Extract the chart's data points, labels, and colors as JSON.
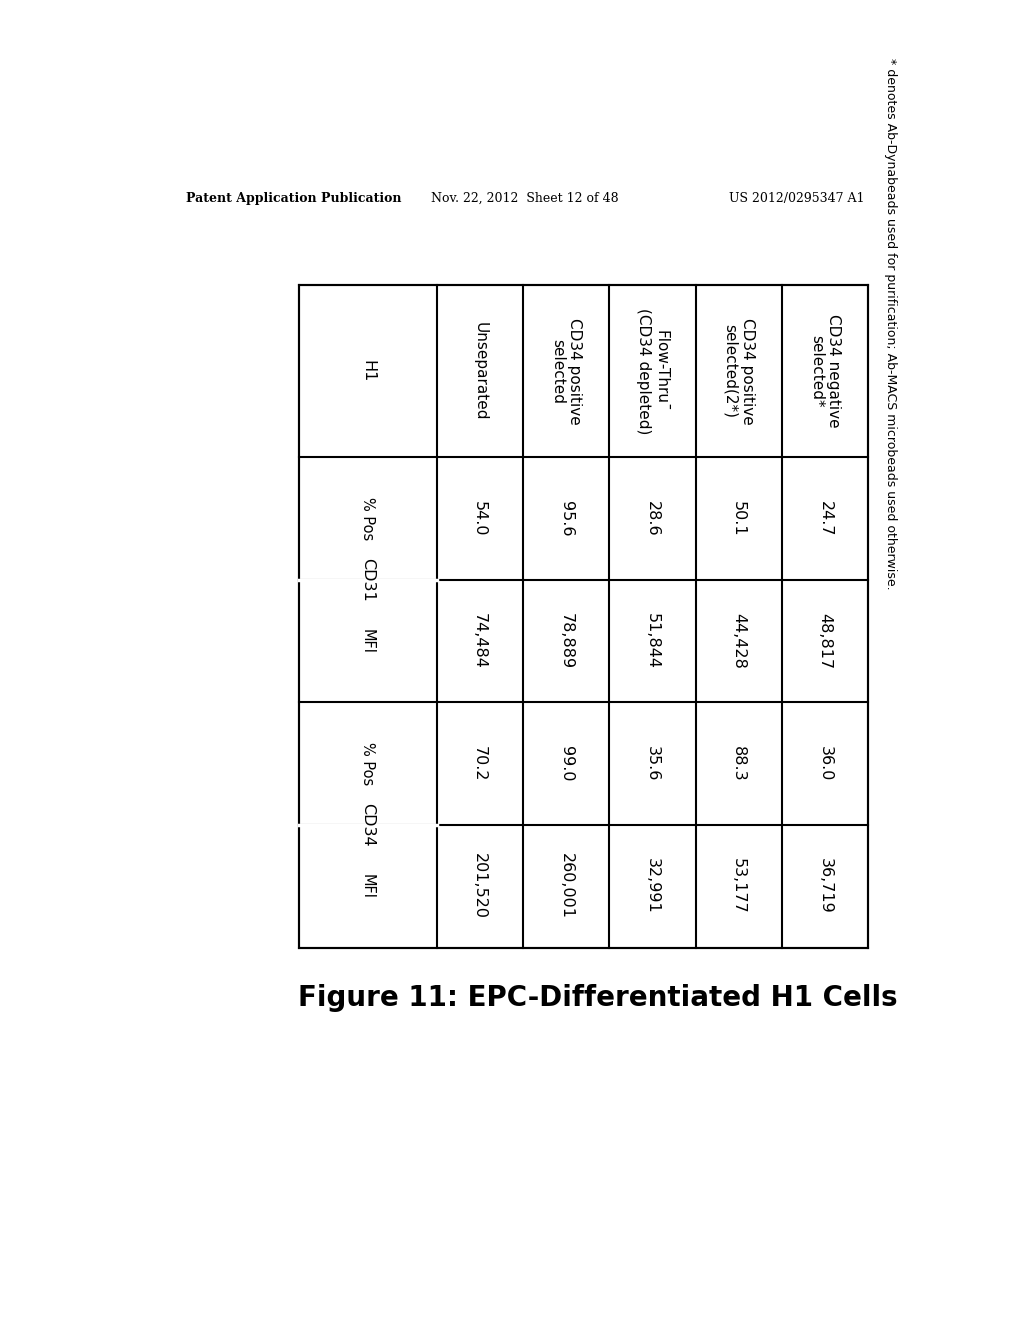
{
  "page_header_left": "Patent Application Publication",
  "page_header_mid": "Nov. 22, 2012  Sheet 12 of 48",
  "page_header_right": "US 2012/0295347 A1",
  "figure_title": "Figure 11: EPC-Differentiated H1 Cells",
  "col_header_h1": "H1",
  "col_header_cd31": "CD31",
  "col_header_cd34": "CD34",
  "subheader_ppos": "% Pos",
  "subheader_mfi": "MFI",
  "rows": [
    [
      "Unseparated",
      "54.0",
      "74,484",
      "70.2",
      "201,520"
    ],
    [
      "CD34 positive\nselected",
      "95.6",
      "78,889",
      "99.0",
      "260,001"
    ],
    [
      "Flow-Thru¯\n(CD34 depleted)",
      "28.6",
      "51,844",
      "35.6",
      "32,991"
    ],
    [
      "CD34 positive\nselected(2*)",
      "50.1",
      "44,428",
      "88.3",
      "53,177"
    ],
    [
      "CD34 negative\nselected*",
      "24.7",
      "48,817",
      "36.0",
      "36,719"
    ]
  ],
  "footnote": "* denotes Ab-Dynabeads used for purification; Ab-MACS microbeads used otherwise.",
  "bg_color": "#ffffff",
  "line_color": "#000000",
  "text_color": "#000000"
}
